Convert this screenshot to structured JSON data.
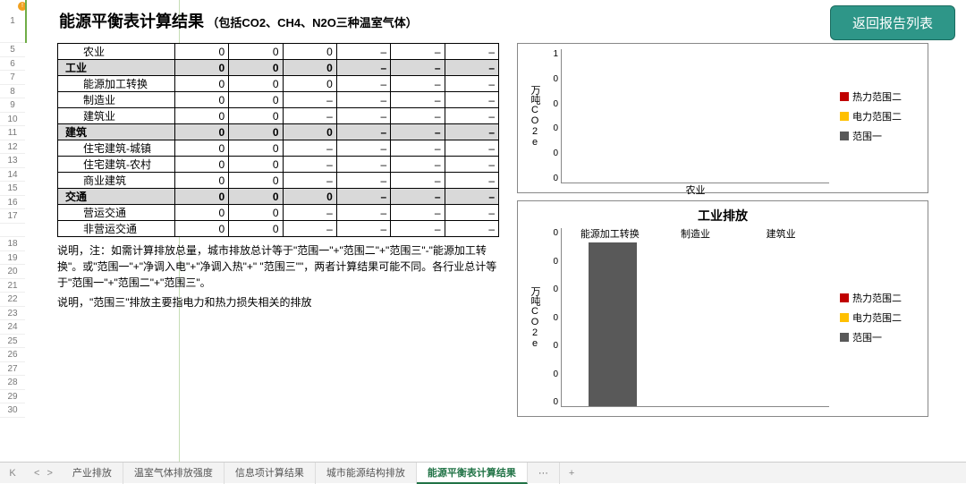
{
  "title": {
    "main": "能源平衡表计算结果",
    "sub": "（包括CO2、CH4、N2O三种温室气体）"
  },
  "return_button": "返回报告列表",
  "row_numbers": [
    "1",
    "5",
    "6",
    "7",
    "8",
    "9",
    "10",
    "11",
    "12",
    "13",
    "14",
    "15",
    "16",
    "17",
    "",
    "18",
    "19",
    "20",
    "21",
    "22",
    "23",
    "24",
    "25",
    "26",
    "27",
    "28",
    "29",
    "30"
  ],
  "table": {
    "rows": [
      {
        "hdr": false,
        "indent": true,
        "label": "农业",
        "c": [
          "0",
          "0",
          "0",
          "–",
          "–",
          "–"
        ]
      },
      {
        "hdr": true,
        "indent": false,
        "label": "工业",
        "c": [
          "0",
          "0",
          "0",
          "–",
          "–",
          "–"
        ]
      },
      {
        "hdr": false,
        "indent": true,
        "label": "能源加工转换",
        "c": [
          "0",
          "0",
          "0",
          "–",
          "–",
          "–"
        ]
      },
      {
        "hdr": false,
        "indent": true,
        "label": "制造业",
        "c": [
          "0",
          "0",
          "–",
          "–",
          "–",
          "–"
        ]
      },
      {
        "hdr": false,
        "indent": true,
        "label": "建筑业",
        "c": [
          "0",
          "0",
          "–",
          "–",
          "–",
          "–"
        ]
      },
      {
        "hdr": true,
        "indent": false,
        "label": "建筑",
        "c": [
          "0",
          "0",
          "0",
          "–",
          "–",
          "–"
        ]
      },
      {
        "hdr": false,
        "indent": true,
        "label": "住宅建筑-城镇",
        "c": [
          "0",
          "0",
          "–",
          "–",
          "–",
          "–"
        ]
      },
      {
        "hdr": false,
        "indent": true,
        "label": "住宅建筑-农村",
        "c": [
          "0",
          "0",
          "–",
          "–",
          "–",
          "–"
        ]
      },
      {
        "hdr": false,
        "indent": true,
        "label": "商业建筑",
        "c": [
          "0",
          "0",
          "–",
          "–",
          "–",
          "–"
        ]
      },
      {
        "hdr": true,
        "indent": false,
        "label": "交通",
        "c": [
          "0",
          "0",
          "0",
          "–",
          "–",
          "–"
        ]
      },
      {
        "hdr": false,
        "indent": true,
        "label": "营运交通",
        "c": [
          "0",
          "0",
          "–",
          "–",
          "–",
          "–"
        ]
      },
      {
        "hdr": false,
        "indent": true,
        "label": "非营运交通",
        "c": [
          "0",
          "0",
          "–",
          "–",
          "–",
          "–"
        ]
      }
    ]
  },
  "notes": {
    "p1": "说明，注：如需计算排放总量，城市排放总计等于\"范围一\"+\"范围二\"+\"范围三\"-\"能源加工转换\"。或\"范围一\"+\"净调入电\"+\"净调入热\"+\" \"范围三\"\"，两者计算结果可能不同。各行业总计等于\"范围一\"+\"范围二\"+\"范围三\"。",
    "p2": "说明，\"范围三\"排放主要指电力和热力损失相关的排放"
  },
  "legend": {
    "items": [
      {
        "label": "热力范围二",
        "color": "#c00000"
      },
      {
        "label": "电力范围二",
        "color": "#ffc000"
      },
      {
        "label": "范围一",
        "color": "#595959"
      }
    ]
  },
  "chart1": {
    "y_label": "万吨CO2e",
    "y_ticks": [
      "1",
      "0",
      "0",
      "0",
      "0",
      "0"
    ],
    "x_categories": [
      {
        "label": "农业",
        "pos_pct": 50
      }
    ],
    "bars": []
  },
  "chart2": {
    "title": "工业排放",
    "y_label": "万吨CO2e",
    "y_ticks": [
      "0",
      "0",
      "0",
      "0",
      "0",
      "0",
      "0"
    ],
    "x_categories": [
      {
        "label": "能源加工转换",
        "pos_pct": 18
      },
      {
        "label": "制造业",
        "pos_pct": 50
      },
      {
        "label": "建筑业",
        "pos_pct": 82
      }
    ],
    "bars": [
      {
        "left_pct": 10,
        "width_pct": 18,
        "height_pct": 92,
        "color": "#595959"
      }
    ]
  },
  "tabs": {
    "items": [
      "产业排放",
      "温室气体排放强度",
      "信息项计算结果",
      "城市能源结构排放",
      "能源平衡表计算结果"
    ],
    "active_index": 4,
    "more": "···",
    "plus": "+"
  },
  "colors": {
    "header_bg": "#d9d9d9",
    "btn_bg": "#2e9688",
    "active_tab": "#217346"
  }
}
